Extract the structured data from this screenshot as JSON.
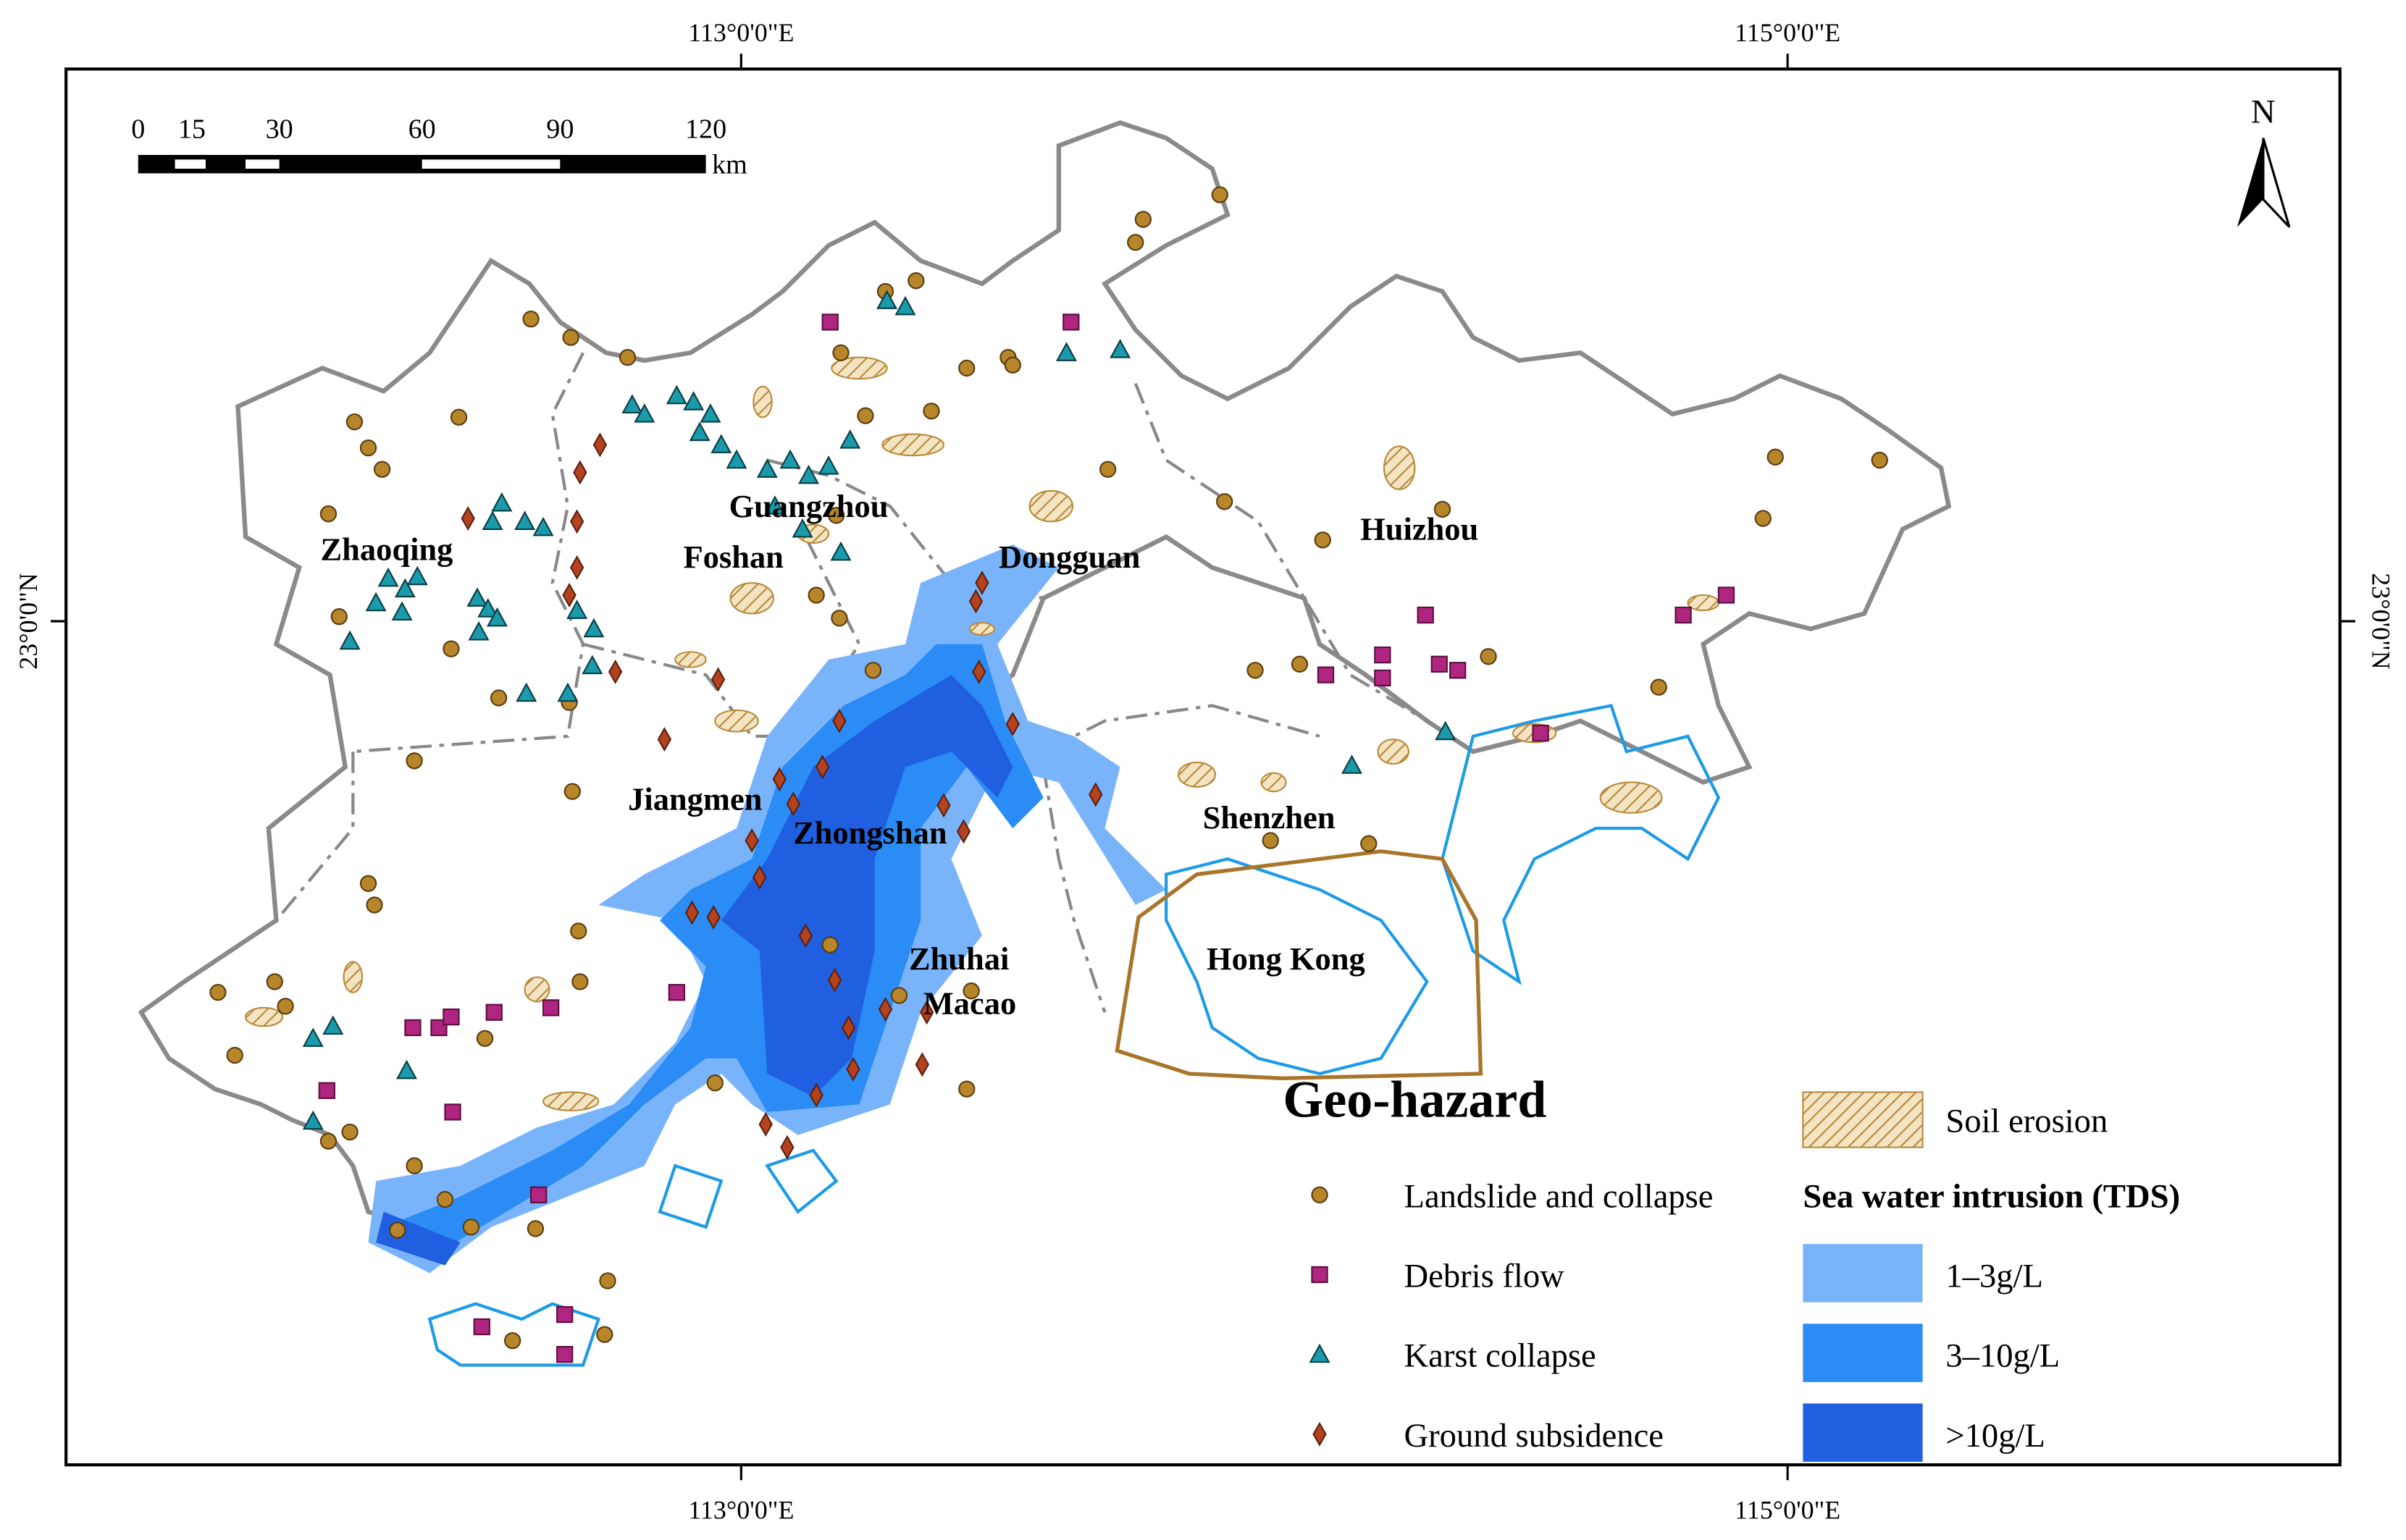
{
  "map": {
    "title": "Geo-hazard",
    "north": "N",
    "longitude_labels": [
      "113°0'0\"E",
      "115°0'0\"E"
    ],
    "latitude_label": "23°0'0\"N",
    "scale_bar": {
      "labels": [
        "0",
        "15",
        "30",
        "60",
        "90",
        "120"
      ],
      "unit": "km"
    },
    "cities": [
      "Zhaoqing",
      "Guangzhou",
      "Foshan",
      "Dongguan",
      "Huizhou",
      "Jiangmen",
      "Zhongshan",
      "Shenzhen",
      "Hong Kong",
      "Zhuhai",
      "Macao"
    ],
    "legend": {
      "soil_erosion": "Soil erosion",
      "hazards": [
        "Landslide and collapse",
        "Debris flow",
        "Karst collapse",
        "Ground subsidence"
      ],
      "tds_title": "Sea water intrusion (TDS)",
      "tds_classes": [
        "1–3g/L",
        "3–10g/L",
        ">10g/L"
      ]
    }
  }
}
